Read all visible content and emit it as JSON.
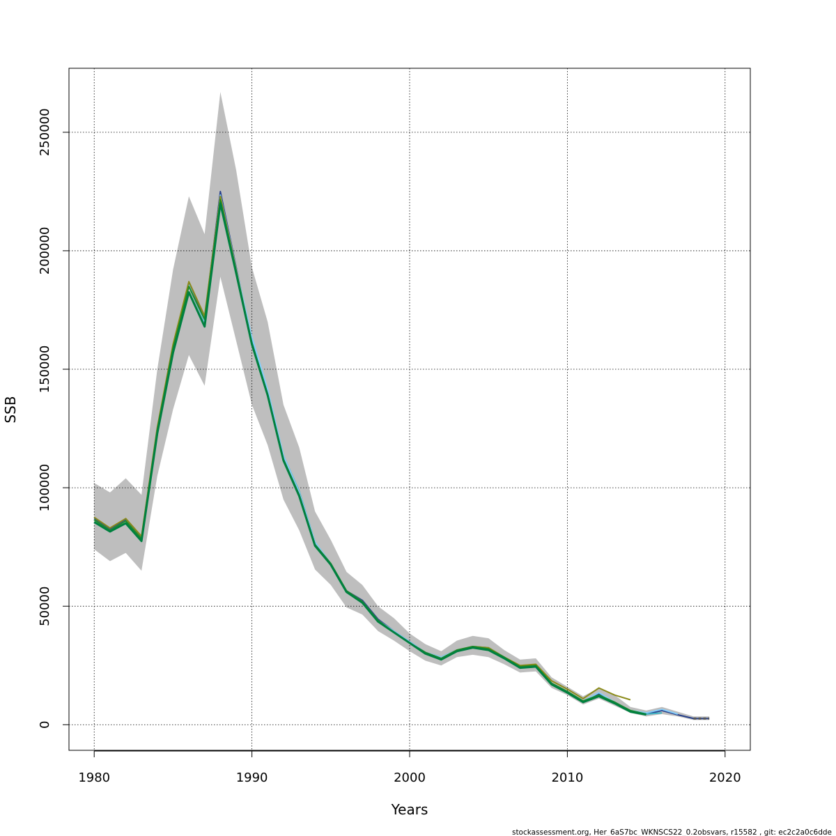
{
  "chart_data": {
    "type": "line",
    "xlabel": "Years",
    "ylabel": "SSB",
    "xlim": [
      1978.4,
      2021.6
    ],
    "ylim": [
      -10800,
      277000
    ],
    "x_ticks": [
      1980,
      1990,
      2000,
      2010,
      2020
    ],
    "y_ticks": [
      0,
      50000,
      100000,
      150000,
      200000,
      250000
    ],
    "grid": true,
    "footer": "stockassessment.org, Her_6aS7bc_WKNSCS22_0.2obsvars, r15582 , git: ec2c2a0c6dde",
    "band": {
      "color": "#bebebe",
      "years": [
        1980,
        1981,
        1982,
        1983,
        1984,
        1985,
        1986,
        1987,
        1988,
        1989,
        1990,
        1991,
        1992,
        1993,
        1994,
        1995,
        1996,
        1997,
        1998,
        1999,
        2000,
        2001,
        2002,
        2003,
        2004,
        2005,
        2006,
        2007,
        2008,
        2009,
        2010,
        2011,
        2012,
        2013,
        2014,
        2015,
        2016,
        2017,
        2018,
        2019
      ],
      "lower": [
        74000,
        69000,
        72500,
        65000,
        105000,
        133000,
        156000,
        143000,
        189000,
        162000,
        135000,
        118000,
        95000,
        82000,
        65500,
        59000,
        49500,
        46500,
        39500,
        35500,
        31000,
        27000,
        25000,
        28500,
        29500,
        28500,
        25500,
        22000,
        22500,
        15500,
        12500,
        8500,
        11000,
        8000,
        5000,
        3500,
        4500,
        3500,
        2000,
        2000
      ],
      "upper": [
        102000,
        98000,
        104000,
        97000,
        150000,
        192000,
        223000,
        207000,
        267000,
        234000,
        193000,
        170000,
        135000,
        117000,
        90000,
        78000,
        64500,
        59000,
        50000,
        45000,
        38500,
        34000,
        31000,
        35500,
        37500,
        36500,
        31500,
        27500,
        28000,
        20000,
        16000,
        12000,
        15500,
        12500,
        7500,
        6000,
        7500,
        5500,
        3500,
        3500
      ]
    },
    "series": [
      {
        "color": "#27408b",
        "years": [
          1980,
          1981,
          1982,
          1983,
          1984,
          1985,
          1986,
          1987,
          1988,
          1989,
          1990,
          1991,
          1992,
          1993,
          1994,
          1995,
          1996,
          1997,
          1998,
          1999,
          2000,
          2001,
          2002,
          2003,
          2004,
          2005,
          2006,
          2007,
          2008,
          2009,
          2010,
          2011,
          2012,
          2013,
          2014,
          2015,
          2016,
          2017,
          2018,
          2019
        ],
        "values": [
          87000,
          82500,
          86500,
          79000,
          125000,
          159000,
          186000,
          171000,
          225000,
          193000,
          162000,
          140000,
          113000,
          97500,
          76500,
          67500,
          56500,
          52500,
          44500,
          39500,
          35000,
          30500,
          28500,
          31500,
          33000,
          32500,
          28500,
          24500,
          25000,
          17500,
          14000,
          10000,
          13000,
          9500,
          6000,
          4500,
          6000,
          4200,
          2600,
          2600
        ]
      },
      {
        "color": "#3bb3c3",
        "years": [
          1980,
          1981,
          1982,
          1983,
          1984,
          1985,
          1986,
          1987,
          1988,
          1989,
          1990,
          1991,
          1992,
          1993,
          1994,
          1995,
          1996,
          1997,
          1998,
          1999,
          2000,
          2001,
          2002,
          2003,
          2004,
          2005,
          2006,
          2007,
          2008,
          2009,
          2010,
          2011,
          2012,
          2013,
          2014,
          2015,
          2016
        ],
        "values": [
          86500,
          82000,
          86000,
          78500,
          124000,
          158500,
          185000,
          170000,
          223000,
          192000,
          163000,
          141000,
          113500,
          98500,
          77000,
          68000,
          56500,
          52000,
          44000,
          39500,
          35000,
          30500,
          28500,
          31500,
          33000,
          32500,
          28500,
          24500,
          25000,
          17000,
          14000,
          9500,
          12500,
          9000,
          5500,
          4500,
          5000
        ]
      },
      {
        "color": "#87cefa",
        "years": [
          1980,
          1981,
          1982,
          1983,
          1984,
          1985,
          1986,
          1987,
          1988,
          1989,
          1990,
          1991,
          1992,
          1993,
          1994,
          1995,
          1996,
          1997,
          1998,
          1999,
          2000,
          2001,
          2002,
          2003,
          2004,
          2005,
          2006,
          2007,
          2008,
          2009,
          2010,
          2011,
          2012,
          2013,
          2014,
          2015,
          2016,
          2017
        ],
        "values": [
          86500,
          82000,
          86000,
          78500,
          124500,
          158500,
          185500,
          170500,
          223500,
          192500,
          163500,
          141500,
          113500,
          98000,
          77000,
          68000,
          56500,
          52000,
          44000,
          39500,
          35000,
          30500,
          28500,
          31500,
          33000,
          32500,
          28500,
          24500,
          25000,
          17500,
          14000,
          10000,
          13500,
          9500,
          6000,
          5000,
          6500,
          4500
        ]
      },
      {
        "color": "#8b8b1a",
        "years": [
          1980,
          1981,
          1982,
          1983,
          1984,
          1985,
          1986,
          1987,
          1988,
          1989,
          1990,
          1991,
          1992,
          1993,
          1994,
          1995,
          1996,
          1997,
          1998,
          1999,
          2000,
          2001,
          2002,
          2003,
          2004,
          2005,
          2006,
          2007,
          2008,
          2009,
          2010,
          2011,
          2012,
          2013,
          2014
        ],
        "values": [
          87500,
          83000,
          87000,
          79500,
          125500,
          160500,
          187000,
          172500,
          223000,
          192000,
          161000,
          139500,
          112000,
          97000,
          76000,
          68000,
          56500,
          52000,
          44000,
          39000,
          34500,
          30500,
          28000,
          31500,
          33000,
          32500,
          28500,
          25000,
          25500,
          18500,
          15000,
          11000,
          15500,
          12500,
          10500
        ]
      },
      {
        "color": "#228b22",
        "years": [
          1980,
          1981,
          1982,
          1983,
          1984,
          1985,
          1986,
          1987,
          1988,
          1989,
          1990,
          1991,
          1992,
          1993,
          1994,
          1995,
          1996,
          1997,
          1998,
          1999,
          2000,
          2001,
          2002,
          2003,
          2004,
          2005,
          2006,
          2007,
          2008,
          2009,
          2010,
          2011,
          2012,
          2013,
          2014,
          2015
        ],
        "values": [
          86500,
          82000,
          86000,
          78500,
          124500,
          159000,
          185000,
          171000,
          221500,
          191500,
          161000,
          139500,
          112000,
          97000,
          76000,
          68000,
          56500,
          52000,
          44000,
          39000,
          34500,
          30500,
          28000,
          31500,
          33000,
          32000,
          28500,
          24500,
          25000,
          17500,
          14000,
          10000,
          12500,
          9500,
          6000,
          4500
        ]
      },
      {
        "color": "#008040",
        "years": [
          1980,
          1981,
          1982,
          1983,
          1984,
          1985,
          1986,
          1987,
          1988,
          1989,
          1990,
          1991,
          1992,
          1993,
          1994,
          1995,
          1996,
          1997,
          1998,
          1999,
          2000,
          2001,
          2002,
          2003,
          2004,
          2005,
          2006,
          2007,
          2008,
          2009,
          2010,
          2011,
          2012,
          2013,
          2014,
          2015
        ],
        "values": [
          85500,
          81500,
          85000,
          77500,
          123000,
          157000,
          182500,
          168000,
          220000,
          190500,
          160500,
          139000,
          111500,
          96500,
          75500,
          67500,
          56000,
          51500,
          43500,
          39000,
          34500,
          30000,
          27500,
          31000,
          32500,
          31500,
          28000,
          24000,
          24500,
          17000,
          13500,
          9500,
          12000,
          9000,
          5500,
          4300
        ]
      }
    ],
    "terminal_dashed": {
      "color": "#555555",
      "years": [
        2018,
        2019
      ],
      "values": [
        2600,
        2600
      ]
    }
  }
}
